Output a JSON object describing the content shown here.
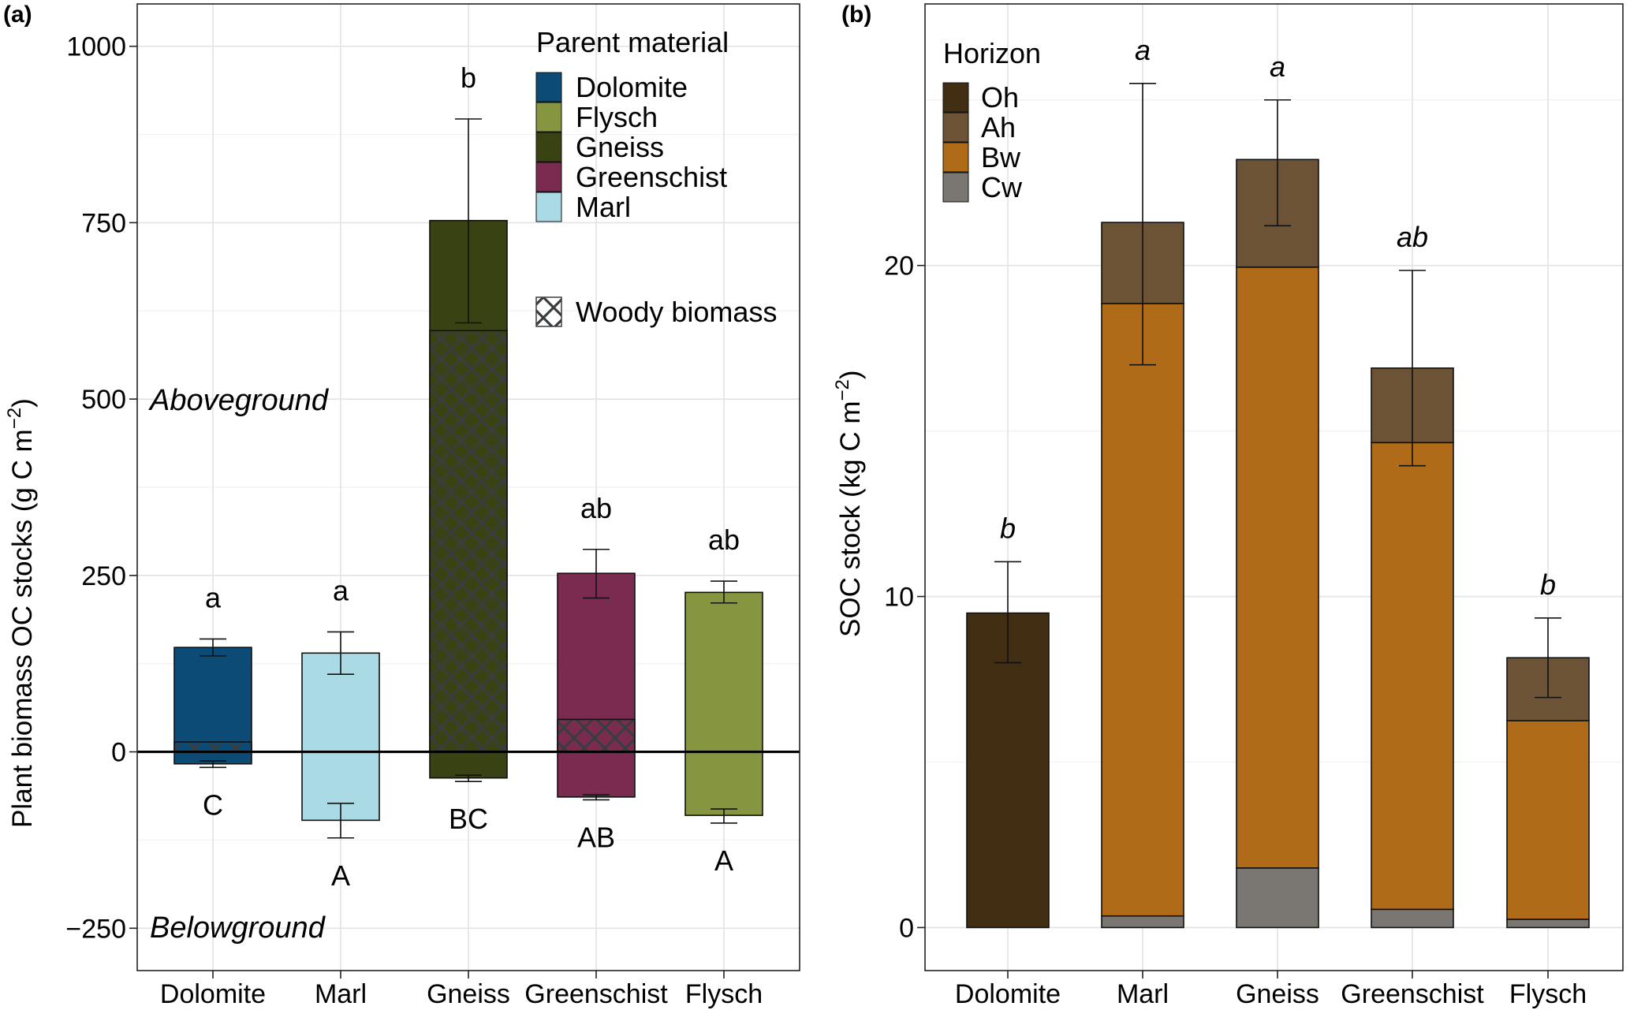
{
  "chart_data": [
    {
      "panel_label": "(a)",
      "type": "bar",
      "ylabel": "Plant biomass OC stocks (g C m",
      "ylabel_exponent": "−2",
      "ylabel_close": ")",
      "ylim": [
        -310,
        1060
      ],
      "yticks": [
        -250,
        0,
        250,
        500,
        750,
        1000
      ],
      "ytick_labels": [
        "−250",
        "0",
        "250",
        "500",
        "750",
        "1000"
      ],
      "categories": [
        "Dolomite",
        "Marl",
        "Gneiss",
        "Greenschist",
        "Flysch"
      ],
      "annotations": {
        "above": "Aboveground",
        "below": "Belowground"
      },
      "legend_title": "Parent material",
      "legend_items": [
        {
          "label": "Dolomite",
          "color": "#0d4b77"
        },
        {
          "label": "Flysch",
          "color": "#86953f"
        },
        {
          "label": "Gneiss",
          "color": "#394212"
        },
        {
          "label": "Greenschist",
          "color": "#7a2b4f"
        },
        {
          "label": "Marl",
          "color": "#aadbe5"
        }
      ],
      "woody_label": "Woody biomass",
      "bars": [
        {
          "name": "Dolomite",
          "color": "#0d4b77",
          "above": 148,
          "woody": 14,
          "above_err": [
            136,
            160
          ],
          "above_letter": "a",
          "below": -17,
          "below_err": [
            -22,
            -13
          ],
          "below_letter": "C"
        },
        {
          "name": "Marl",
          "color": "#aadbe5",
          "above": 140,
          "woody": 0,
          "above_err": [
            110,
            170
          ],
          "above_letter": "a",
          "below": -97,
          "below_err": [
            -122,
            -73
          ],
          "below_letter": "A"
        },
        {
          "name": "Gneiss",
          "color": "#394212",
          "above": 753,
          "woody": 597,
          "above_err": [
            608,
            897
          ],
          "above_letter": "b",
          "below": -37,
          "below_err": [
            -42,
            -33
          ],
          "below_letter": "BC"
        },
        {
          "name": "Greenschist",
          "color": "#7a2b4f",
          "above": 253,
          "woody": 46,
          "above_err": [
            218,
            287
          ],
          "above_letter": "ab",
          "below": -64,
          "below_err": [
            -68,
            -61
          ],
          "below_letter": "AB"
        },
        {
          "name": "Flysch",
          "color": "#86953f",
          "above": 226,
          "woody": 0,
          "above_err": [
            211,
            242
          ],
          "above_letter": "ab",
          "below": -90,
          "below_err": [
            -101,
            -81
          ],
          "below_letter": "A"
        }
      ]
    },
    {
      "panel_label": "(b)",
      "type": "bar",
      "stacked": true,
      "ylabel": "SOC stock (kg C m",
      "ylabel_exponent": "−2",
      "ylabel_close": ")",
      "ylim": [
        -1.3,
        27.9
      ],
      "yticks": [
        0,
        10,
        20
      ],
      "ytick_labels": [
        "0",
        "10",
        "20"
      ],
      "categories": [
        "Dolomite",
        "Marl",
        "Gneiss",
        "Greenschist",
        "Flysch"
      ],
      "legend_title": "Horizon",
      "series": [
        {
          "name": "Oh",
          "color": "#422e13"
        },
        {
          "name": "Ah",
          "color": "#6c5335"
        },
        {
          "name": "Bw",
          "color": "#b06b18"
        },
        {
          "name": "Cw",
          "color": "#7a7772"
        }
      ],
      "bars": [
        {
          "name": "Dolomite",
          "Cw": 0,
          "Bw": 0,
          "Ah": 0,
          "Oh": 9.5,
          "err": [
            8.0,
            11.05
          ],
          "letter": "b"
        },
        {
          "name": "Marl",
          "Cw": 0.35,
          "Bw": 18.5,
          "Ah": 2.45,
          "Oh": 0,
          "err": [
            17.0,
            25.5
          ],
          "letter": "a"
        },
        {
          "name": "Gneiss",
          "Cw": 1.8,
          "Bw": 18.15,
          "Ah": 3.25,
          "Oh": 0,
          "err": [
            21.2,
            25.0
          ],
          "letter": "a"
        },
        {
          "name": "Greenschist",
          "Cw": 0.55,
          "Bw": 14.1,
          "Ah": 2.25,
          "Oh": 0,
          "err": [
            13.95,
            19.85
          ],
          "letter": "ab"
        },
        {
          "name": "Flysch",
          "Cw": 0.25,
          "Bw": 6.0,
          "Ah": 1.9,
          "Oh": 0,
          "err": [
            6.95,
            9.35
          ],
          "letter": "b"
        }
      ]
    }
  ]
}
